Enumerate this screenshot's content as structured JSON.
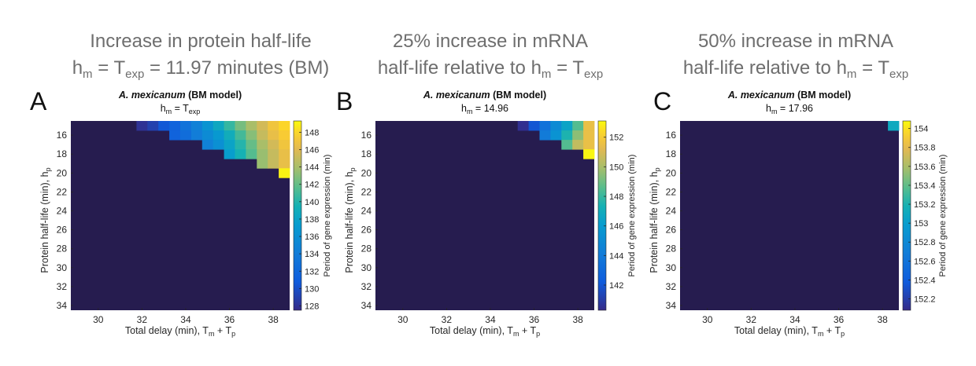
{
  "headers": [
    {
      "line1": "Increase in protein half-life",
      "line2": {
        "h": "h",
        "h_sub": "m",
        "mid": " = T",
        "t_sub": "exp",
        "rest": " = 11.97 minutes (BM)"
      }
    },
    {
      "line1": "25% increase in mRNA",
      "line2": {
        "pre": "half-life relative to h",
        "h_sub": "m",
        "mid": " = T",
        "t_sub": "exp"
      }
    },
    {
      "line1": "50% increase in mRNA",
      "line2": {
        "pre": "half-life relative to h",
        "h_sub": "m",
        "mid": " = T",
        "t_sub": "exp"
      }
    }
  ],
  "colors": {
    "background_cell": "#261c4f"
  },
  "chart_data": [
    {
      "type": "heatmap",
      "panel_letter": "A",
      "title": {
        "species": "A. mexicanum",
        "model": "(BM model)",
        "sub_pre": "h",
        "sub_sub": "m",
        "sub_mid": " = T",
        "sub_sub2": "exp",
        "sub_post": ""
      },
      "xlabel": {
        "pre": "Total delay (min), T",
        "s1": "m",
        "mid": " + T",
        "s2": "p"
      },
      "ylabel": {
        "pre": "Protein half-life (min), h",
        "s1": "p"
      },
      "x_ticks": [
        "30",
        "32",
        "34",
        "36",
        "38"
      ],
      "y_ticks": [
        "16",
        "18",
        "20",
        "22",
        "24",
        "26",
        "28",
        "30",
        "32",
        "34"
      ],
      "colorbar": {
        "label": "Period of gene expression (min)",
        "ticks": [
          "148",
          "146",
          "144",
          "142",
          "140",
          "138",
          "136",
          "134",
          "132",
          "130",
          "128"
        ],
        "min": 127.5,
        "max": 149.3
      },
      "cells": [
        [
          32.0,
          15,
          128.0
        ],
        [
          32.5,
          15,
          129.0
        ],
        [
          33.0,
          15,
          130.5
        ],
        [
          33.5,
          15,
          131.5
        ],
        [
          34.0,
          15,
          133.0
        ],
        [
          34.5,
          15,
          134.5
        ],
        [
          35.0,
          15,
          136.5
        ],
        [
          35.5,
          15,
          138.5
        ],
        [
          36.0,
          15,
          140.5
        ],
        [
          36.5,
          15,
          142.5
        ],
        [
          37.0,
          15,
          144.0
        ],
        [
          37.5,
          15,
          145.5
        ],
        [
          38.0,
          15,
          147.0
        ],
        [
          38.5,
          15,
          148.0
        ],
        [
          33.5,
          16,
          131.5
        ],
        [
          34.0,
          16,
          132.5
        ],
        [
          34.5,
          16,
          134.0
        ],
        [
          35.0,
          16,
          135.5
        ],
        [
          35.5,
          16,
          137.0
        ],
        [
          36.0,
          16,
          139.0
        ],
        [
          36.5,
          16,
          141.0
        ],
        [
          37.0,
          16,
          143.0
        ],
        [
          37.5,
          16,
          145.0
        ],
        [
          38.0,
          16,
          146.5
        ],
        [
          38.5,
          16,
          147.5
        ],
        [
          35.0,
          17,
          134.5
        ],
        [
          35.5,
          17,
          136.0
        ],
        [
          36.0,
          17,
          138.0
        ],
        [
          36.5,
          17,
          140.0
        ],
        [
          37.0,
          17,
          142.0
        ],
        [
          37.5,
          17,
          144.0
        ],
        [
          38.0,
          17,
          145.5
        ],
        [
          38.5,
          17,
          147.0
        ],
        [
          36.0,
          18,
          137.5
        ],
        [
          36.5,
          18,
          139.5
        ],
        [
          37.0,
          18,
          141.5
        ],
        [
          37.5,
          18,
          143.5
        ],
        [
          38.0,
          18,
          145.0
        ],
        [
          38.5,
          18,
          146.5
        ],
        [
          37.5,
          19,
          143.5
        ],
        [
          38.0,
          19,
          145.0
        ],
        [
          38.5,
          19,
          146.5
        ],
        [
          38.5,
          20,
          149.0
        ]
      ]
    },
    {
      "type": "heatmap",
      "panel_letter": "B",
      "title": {
        "species": "A. mexicanum",
        "model": "(BM model)",
        "sub_pre": "h",
        "sub_sub": "m",
        "sub_mid": " = 14.96",
        "sub_sub2": "",
        "sub_post": ""
      },
      "xlabel": {
        "pre": "Total delay (min), T",
        "s1": "m",
        "mid": " + T",
        "s2": "p"
      },
      "ylabel": {
        "pre": "Protein half-life (min), h",
        "s1": "p"
      },
      "x_ticks": [
        "30",
        "32",
        "34",
        "36",
        "38"
      ],
      "y_ticks": [
        "16",
        "18",
        "20",
        "22",
        "24",
        "26",
        "28",
        "30",
        "32",
        "34"
      ],
      "colorbar": {
        "label": "Period of gene expression (min)",
        "ticks": [
          "152",
          "150",
          "148",
          "146",
          "144",
          "142"
        ],
        "min": 140.3,
        "max": 153.1
      },
      "cells": [
        [
          35.5,
          15,
          140.5
        ],
        [
          36.0,
          15,
          142.0
        ],
        [
          36.5,
          15,
          143.5
        ],
        [
          37.0,
          15,
          145.0
        ],
        [
          37.5,
          15,
          146.5
        ],
        [
          38.0,
          15,
          148.5
        ],
        [
          38.5,
          15,
          151.5
        ],
        [
          36.5,
          16,
          144.0
        ],
        [
          37.0,
          16,
          145.5
        ],
        [
          37.5,
          16,
          147.5
        ],
        [
          38.0,
          16,
          149.5
        ],
        [
          38.5,
          16,
          151.5
        ],
        [
          37.5,
          17,
          148.5
        ],
        [
          38.0,
          17,
          150.5
        ],
        [
          38.5,
          17,
          151.5
        ],
        [
          38.5,
          18,
          153.0
        ]
      ]
    },
    {
      "type": "heatmap",
      "panel_letter": "C",
      "title": {
        "species": "A. mexicanum",
        "model": "(BM model)",
        "sub_pre": "h",
        "sub_sub": "m",
        "sub_mid": " = 17.96",
        "sub_sub2": "",
        "sub_post": ""
      },
      "xlabel": {
        "pre": "Total delay (min), T",
        "s1": "m",
        "mid": " + T",
        "s2": "p"
      },
      "ylabel": {
        "pre": "Protein half-life (min), h",
        "s1": "p"
      },
      "x_ticks": [
        "30",
        "32",
        "34",
        "36",
        "38"
      ],
      "y_ticks": [
        "16",
        "18",
        "20",
        "22",
        "24",
        "26",
        "28",
        "30",
        "32",
        "34"
      ],
      "colorbar": {
        "label": "Period of gene expression (min)",
        "ticks": [
          "154",
          "153.8",
          "153.6",
          "153.4",
          "153.2",
          "153",
          "152.8",
          "152.6",
          "152.4",
          "152.2"
        ],
        "min": 152.08,
        "max": 154.08
      },
      "cells": [
        [
          38.5,
          15,
          153.1
        ]
      ]
    }
  ]
}
